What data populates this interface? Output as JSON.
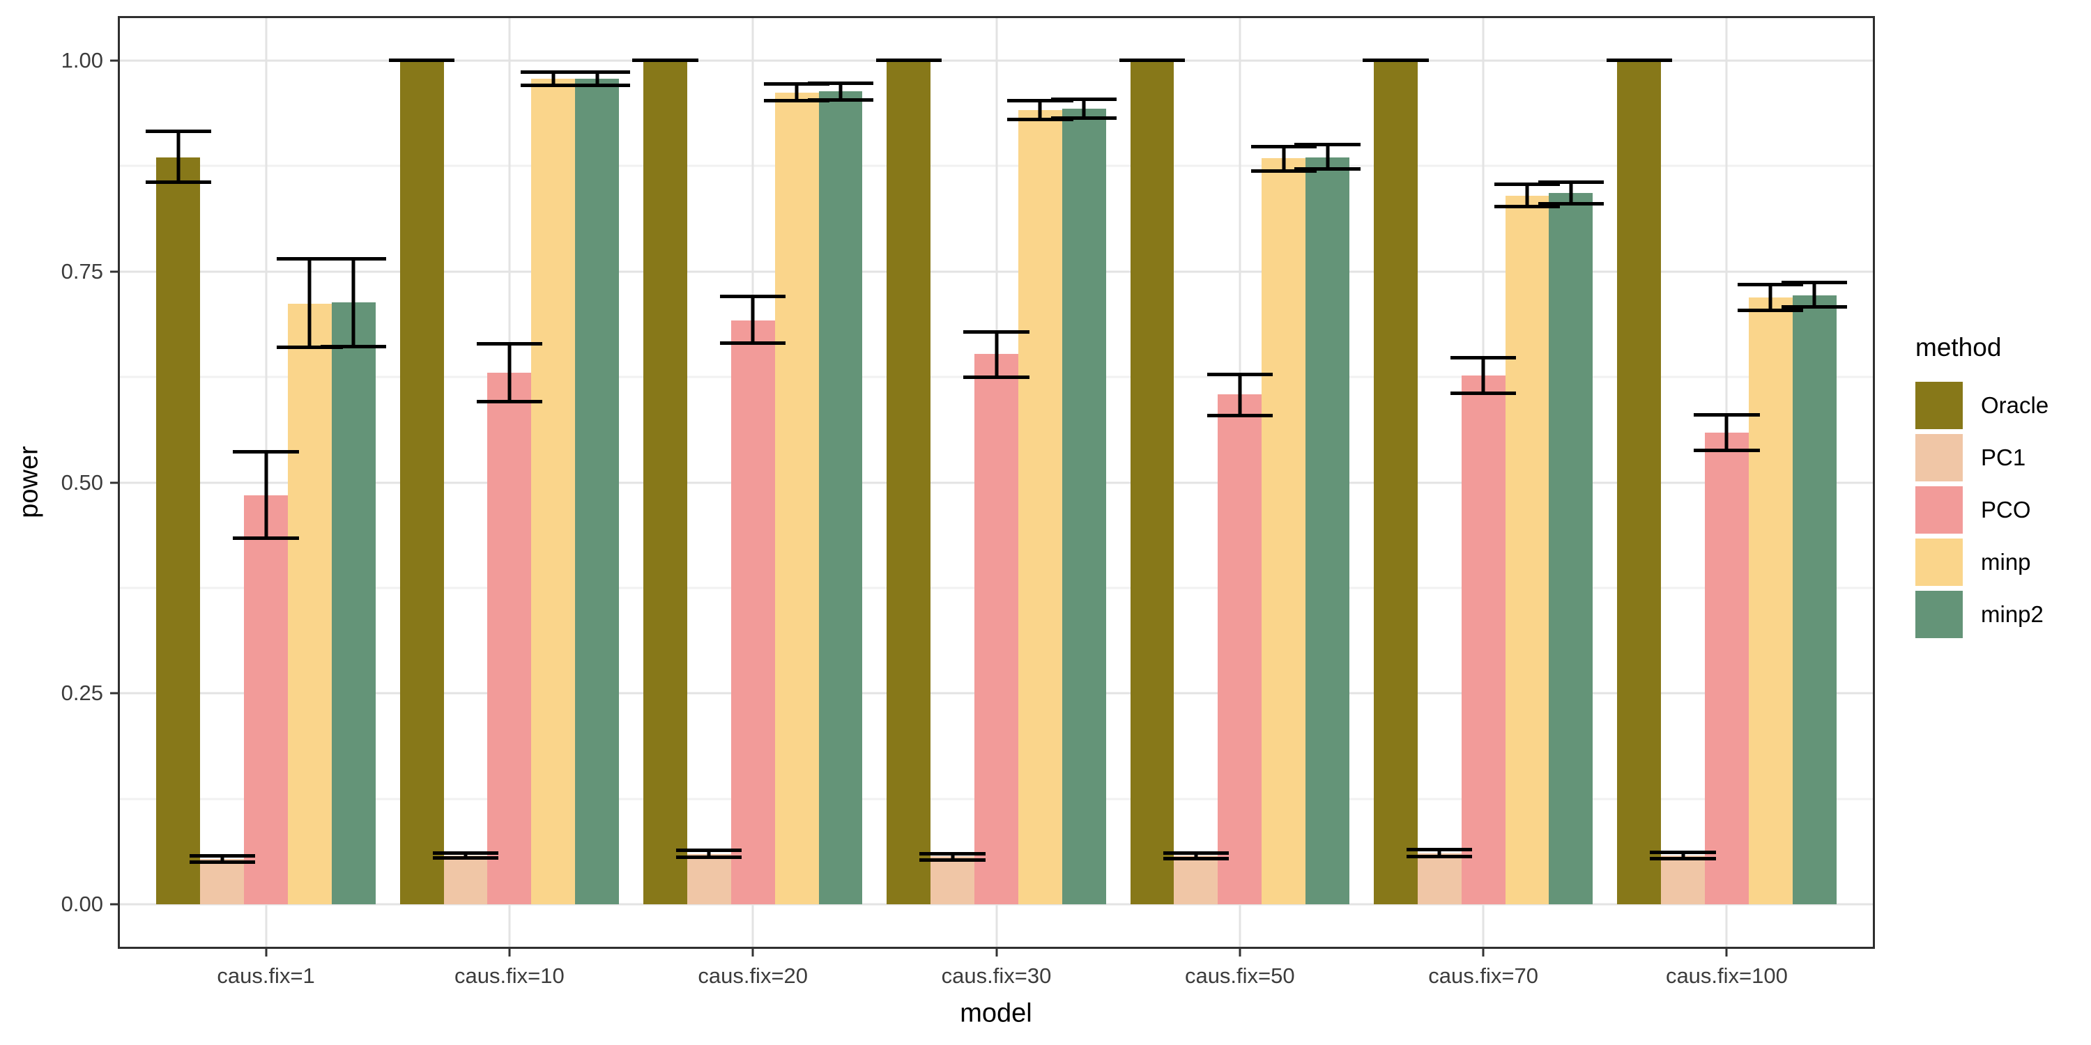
{
  "chart_data": {
    "type": "bar",
    "title": "",
    "xlabel": "model",
    "ylabel": "power",
    "legend_title": "method",
    "legend_position": "right",
    "ylim": [
      0,
      1
    ],
    "y_expansion": 0.05,
    "grid": true,
    "y_ticks": [
      {
        "value": 0.0,
        "label": "0.00"
      },
      {
        "value": 0.25,
        "label": "0.25"
      },
      {
        "value": 0.5,
        "label": "0.50"
      },
      {
        "value": 0.75,
        "label": "0.75"
      },
      {
        "value": 1.0,
        "label": "1.00"
      }
    ],
    "y_minor_gridlines": [
      0.125,
      0.375,
      0.625,
      0.875
    ],
    "categories": [
      "caus.fix=1",
      "caus.fix=10",
      "caus.fix=20",
      "caus.fix=30",
      "caus.fix=50",
      "caus.fix=70",
      "caus.fix=100"
    ],
    "series": [
      {
        "name": "Oracle",
        "color": "#877819",
        "values": [
          0.885,
          1.0,
          1.0,
          1.0,
          1.0,
          1.0,
          1.0
        ],
        "err_lo": [
          0.856,
          1.0,
          1.0,
          1.0,
          1.0,
          1.0,
          1.0
        ],
        "err_hi": [
          0.916,
          1.0,
          1.0,
          1.0,
          1.0,
          1.0,
          1.0
        ]
      },
      {
        "name": "PC1",
        "color": "#F0C6A6",
        "values": [
          0.054,
          0.058,
          0.06,
          0.057,
          0.058,
          0.061,
          0.058
        ],
        "err_lo": [
          0.05,
          0.055,
          0.056,
          0.053,
          0.054,
          0.057,
          0.054
        ],
        "err_hi": [
          0.058,
          0.061,
          0.064,
          0.06,
          0.061,
          0.065,
          0.062
        ]
      },
      {
        "name": "PCO",
        "color": "#F29B99",
        "values": [
          0.485,
          0.63,
          0.692,
          0.652,
          0.604,
          0.627,
          0.559
        ],
        "err_lo": [
          0.434,
          0.596,
          0.665,
          0.625,
          0.579,
          0.606,
          0.538
        ],
        "err_hi": [
          0.536,
          0.664,
          0.72,
          0.678,
          0.628,
          0.648,
          0.58
        ]
      },
      {
        "name": "minp",
        "color": "#FAD58B",
        "values": [
          0.712,
          0.978,
          0.962,
          0.941,
          0.884,
          0.84,
          0.719
        ],
        "err_lo": [
          0.66,
          0.97,
          0.952,
          0.93,
          0.869,
          0.827,
          0.704
        ],
        "err_hi": [
          0.765,
          0.986,
          0.972,
          0.952,
          0.898,
          0.853,
          0.734
        ]
      },
      {
        "name": "minp2",
        "color": "#649478",
        "values": [
          0.713,
          0.978,
          0.963,
          0.943,
          0.885,
          0.843,
          0.722
        ],
        "err_lo": [
          0.661,
          0.97,
          0.953,
          0.932,
          0.871,
          0.83,
          0.708
        ],
        "err_hi": [
          0.765,
          0.986,
          0.973,
          0.954,
          0.9,
          0.856,
          0.737
        ]
      }
    ],
    "style": {
      "error_bar_color": "#000000",
      "panel_border_color": "#2f2f2f",
      "grid_major_color": "#e3e3e3",
      "grid_minor_color": "#f1f1f1",
      "panel_background": "#ffffff",
      "tick_color": "#333333",
      "tick_label_color": "#3c3c3c",
      "axis_title_color": "#000000"
    }
  }
}
